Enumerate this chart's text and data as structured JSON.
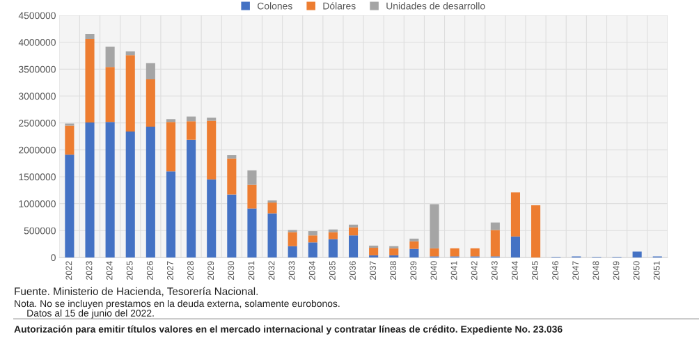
{
  "chart_data": {
    "type": "bar",
    "stacked": true,
    "categories": [
      "2022",
      "2023",
      "2024",
      "2025",
      "2026",
      "2027",
      "2028",
      "2029",
      "2030",
      "2031",
      "2032",
      "2033",
      "2034",
      "2035",
      "2036",
      "2037",
      "2038",
      "2039",
      "2040",
      "2041",
      "2042",
      "2043",
      "2044",
      "2045",
      "2046",
      "2047",
      "2048",
      "2049",
      "2050",
      "2051"
    ],
    "series": [
      {
        "name": "Colones",
        "color": "#4472c4",
        "values": [
          1910000,
          2510000,
          2520000,
          2340000,
          2430000,
          1600000,
          2190000,
          1450000,
          1170000,
          910000,
          820000,
          210000,
          280000,
          340000,
          410000,
          40000,
          40000,
          160000,
          20000,
          20000,
          20000,
          20000,
          390000,
          0,
          10000,
          20000,
          10000,
          10000,
          110000,
          20000
        ]
      },
      {
        "name": "Dólares",
        "color": "#ed7d31",
        "values": [
          540000,
          1550000,
          1020000,
          1420000,
          880000,
          920000,
          340000,
          1090000,
          670000,
          440000,
          200000,
          260000,
          130000,
          130000,
          150000,
          140000,
          130000,
          140000,
          150000,
          150000,
          150000,
          490000,
          820000,
          970000,
          0,
          0,
          0,
          0,
          0,
          0
        ]
      },
      {
        "name": "Unidades de desarrollo",
        "color": "#a5a5a5",
        "values": [
          40000,
          90000,
          380000,
          70000,
          300000,
          50000,
          90000,
          60000,
          60000,
          270000,
          40000,
          40000,
          80000,
          50000,
          50000,
          40000,
          40000,
          50000,
          820000,
          0,
          0,
          140000,
          0,
          0,
          0,
          0,
          0,
          0,
          0,
          0
        ]
      }
    ],
    "ylim": [
      0,
      4500000
    ],
    "yticks": [
      0,
      500000,
      1000000,
      1500000,
      2000000,
      2500000,
      3000000,
      3500000,
      4000000,
      4500000
    ],
    "grid": true,
    "legend": "top",
    "annotations": [
      "Fuente. Ministerio de Hacienda, Tesorería Nacional.",
      "Nota. No se incluyen prestamos en la deuda externa, solamente eurobonos.",
      "Datos al 15 de junio del 2022.",
      "Autorización para emitir títulos valores en el mercado internacional y contratar líneas de crédito. Expediente No. 23.036"
    ]
  }
}
